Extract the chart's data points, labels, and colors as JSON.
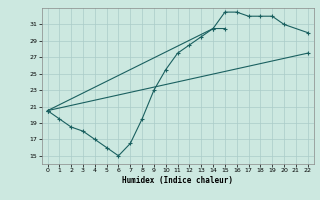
{
  "xlabel": "Humidex (Indice chaleur)",
  "bg_color": "#cce8e0",
  "grid_color": "#aaccc8",
  "line_color": "#1a6060",
  "xlim": [
    -0.5,
    22.5
  ],
  "ylim": [
    14.0,
    33.0
  ],
  "xticks": [
    0,
    1,
    2,
    3,
    4,
    5,
    6,
    7,
    8,
    9,
    10,
    11,
    12,
    13,
    14,
    15,
    16,
    17,
    18,
    19,
    20,
    21,
    22
  ],
  "yticks": [
    15,
    17,
    19,
    21,
    23,
    25,
    27,
    29,
    31
  ],
  "line1_x": [
    0,
    1,
    2,
    3,
    4,
    5,
    6,
    7,
    8,
    9,
    10,
    11,
    12,
    13,
    14,
    15
  ],
  "line1_y": [
    20.5,
    19.5,
    18.5,
    18.0,
    17.0,
    16.0,
    15.0,
    16.5,
    19.5,
    23.0,
    25.5,
    27.5,
    28.5,
    29.5,
    30.5,
    30.5
  ],
  "line2_x": [
    0,
    14,
    15,
    16,
    17,
    18,
    19,
    20,
    22
  ],
  "line2_y": [
    20.5,
    30.5,
    32.5,
    32.5,
    32.0,
    32.0,
    32.0,
    31.0,
    30.0
  ],
  "line3_x": [
    0,
    22
  ],
  "line3_y": [
    20.5,
    27.5
  ]
}
